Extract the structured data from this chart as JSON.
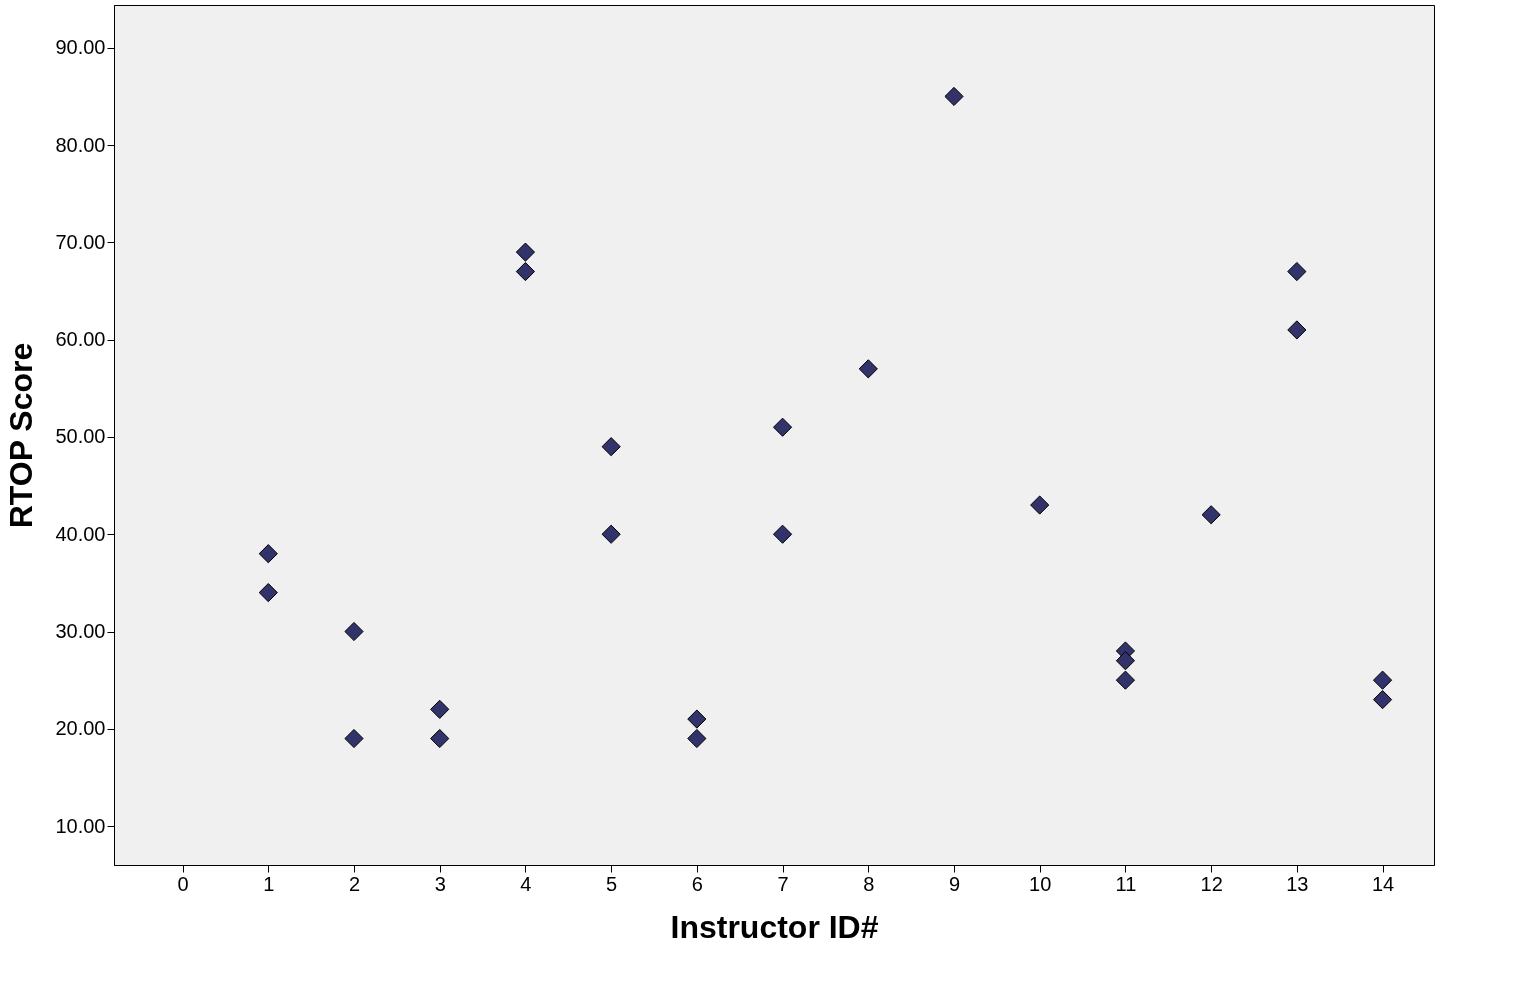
{
  "chart_data": {
    "type": "scatter",
    "xlabel": "Instructor ID#",
    "ylabel": "RTOP Score",
    "series": [
      {
        "color": "#33336b",
        "x": [
          1,
          1,
          2,
          2,
          3,
          3,
          4,
          4,
          5,
          5,
          6,
          6,
          7,
          7,
          8,
          9,
          10,
          11,
          11,
          11,
          12,
          13,
          13,
          14,
          14
        ],
        "values": [
          38,
          34,
          30,
          19,
          22,
          19,
          69,
          67,
          49,
          40,
          21,
          19,
          51,
          40,
          57,
          85,
          43,
          28,
          27,
          25,
          42,
          67,
          61,
          25,
          23
        ]
      }
    ],
    "xlim": [
      -0.8,
      14.6
    ],
    "xticks": [
      0,
      1,
      2,
      3,
      4,
      5,
      6,
      7,
      8,
      9,
      10,
      11,
      12,
      13,
      14
    ],
    "ylim": [
      6,
      94.4
    ],
    "yticks": [
      {
        "value": 10,
        "label": "10.00"
      },
      {
        "value": 20,
        "label": "20.00"
      },
      {
        "value": 30,
        "label": "30.00"
      },
      {
        "value": 40,
        "label": "40.00"
      },
      {
        "value": 50,
        "label": "50.00"
      },
      {
        "value": 60,
        "label": "60.00"
      },
      {
        "value": 70,
        "label": "70.00"
      },
      {
        "value": 80,
        "label": "80.00"
      },
      {
        "value": 90,
        "label": "90.00"
      }
    ],
    "marker": "diamond",
    "grid": false
  }
}
